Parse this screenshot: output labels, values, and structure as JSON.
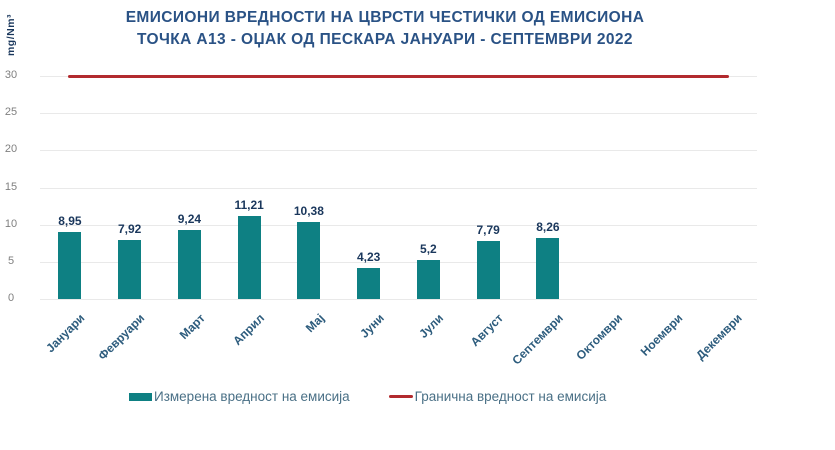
{
  "chart_data": {
    "type": "bar",
    "title": "ЕМИСИОНИ ВРЕДНОСТИ НА ЦВРСТИ ЧЕСТИЧКИ ОД ЕМИСИОНА ТОЧКА А13 - ОЏАК ОД ПЕСКАРА ЈАНУАРИ - СЕПТЕМВРИ 2022",
    "title_lines": [
      "ЕМИСИОНИ ВРЕДНОСТИ НА ЦВРСТИ ЧЕСТИЧКИ ОД ЕМИСИОНА",
      "ТОЧКА А13 - ОЏАК ОД ПЕСКАРА ЈАНУАРИ - СЕПТЕМВРИ 2022"
    ],
    "unit_label": "mg/Nm³",
    "categories": [
      "Јануари",
      "Февруари",
      "Март",
      "Април",
      "Мај",
      "Јуни",
      "Јули",
      "Август",
      "Септември",
      "Октомври",
      "Ноември",
      "Декември"
    ],
    "values": [
      8.95,
      7.92,
      9.24,
      11.21,
      10.38,
      4.23,
      5.2,
      7.79,
      8.26,
      null,
      null,
      null
    ],
    "value_labels": [
      "8,95",
      "7,92",
      "9,24",
      "11,21",
      "10,38",
      "4,23",
      "5,2",
      "7,79",
      "8,26",
      "",
      "",
      ""
    ],
    "limit_value": 30,
    "y_ticks": [
      0,
      5,
      10,
      15,
      20,
      25,
      30
    ],
    "ylim": [
      0,
      30
    ],
    "grid": true,
    "legend_position": "bottom",
    "legend": [
      {
        "label": "Измерена вредност на емисија",
        "type": "bar"
      },
      {
        "label": "Гранична вредност на емисија",
        "type": "line"
      }
    ],
    "colors": {
      "bar": "#0e8083",
      "limit_line": "#b22a2e",
      "title": "#2a5285",
      "data_label": "#1a375c",
      "axis_tick": "#7f7f7f",
      "category_label": "#2d5c7d",
      "legend_text": "#4a7086",
      "gridline": "#e9e9e9"
    }
  }
}
